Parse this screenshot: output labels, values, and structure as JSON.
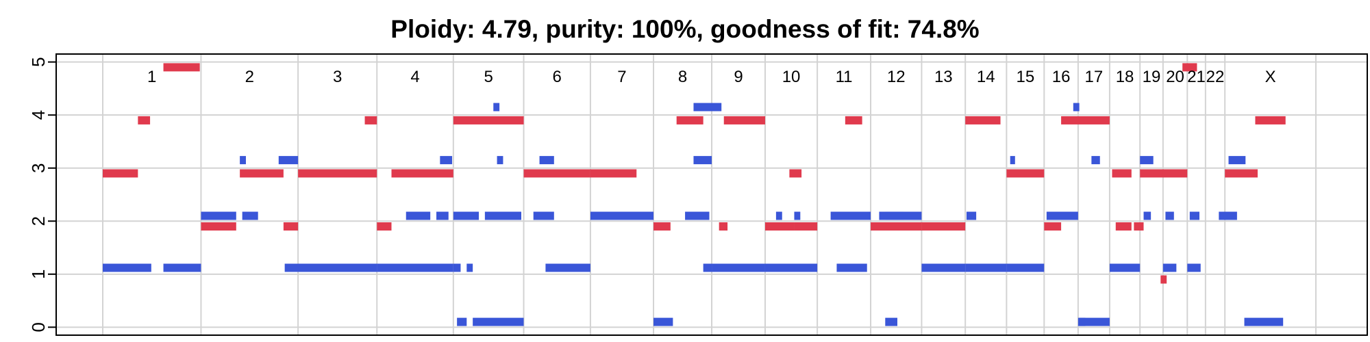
{
  "chart_data": {
    "type": "scatter",
    "title": "Ploidy: 4.79, purity: 100%, goodness of fit: 74.8%",
    "xlabel": "",
    "ylabel": "",
    "ylim": [
      -0.15,
      5.15
    ],
    "yticks": [
      "0",
      "1",
      "2",
      "3",
      "4",
      "5"
    ],
    "grid": true,
    "legend": "none",
    "colors": {
      "major": "#3a56d8",
      "minor": "#e03a4d",
      "grid": "#d3d3d3"
    },
    "chromosomes": [
      {
        "label": "1",
        "start": 0.0,
        "end": 0.081
      },
      {
        "label": "2",
        "start": 0.081,
        "end": 0.161
      },
      {
        "label": "3",
        "start": 0.161,
        "end": 0.226
      },
      {
        "label": "4",
        "start": 0.226,
        "end": 0.289
      },
      {
        "label": "5",
        "start": 0.289,
        "end": 0.347
      },
      {
        "label": "6",
        "start": 0.347,
        "end": 0.402
      },
      {
        "label": "7",
        "start": 0.402,
        "end": 0.454
      },
      {
        "label": "8",
        "start": 0.454,
        "end": 0.502
      },
      {
        "label": "9",
        "start": 0.502,
        "end": 0.546
      },
      {
        "label": "10",
        "start": 0.546,
        "end": 0.589
      },
      {
        "label": "11",
        "start": 0.589,
        "end": 0.633
      },
      {
        "label": "12",
        "start": 0.633,
        "end": 0.675
      },
      {
        "label": "13",
        "start": 0.675,
        "end": 0.711
      },
      {
        "label": "14",
        "start": 0.711,
        "end": 0.745
      },
      {
        "label": "15",
        "start": 0.745,
        "end": 0.776
      },
      {
        "label": "16",
        "start": 0.776,
        "end": 0.804
      },
      {
        "label": "17",
        "start": 0.804,
        "end": 0.83
      },
      {
        "label": "18",
        "start": 0.83,
        "end": 0.855
      },
      {
        "label": "19",
        "start": 0.855,
        "end": 0.874
      },
      {
        "label": "20",
        "start": 0.874,
        "end": 0.894
      },
      {
        "label": "21",
        "start": 0.894,
        "end": 0.909
      },
      {
        "label": "22",
        "start": 0.909,
        "end": 0.925
      },
      {
        "label": "X",
        "start": 0.925,
        "end": 1.0
      }
    ],
    "series": [
      {
        "color": "major",
        "segments": [
          [
            0.0,
            0.04,
            1.12
          ],
          [
            0.05,
            0.081,
            1.12
          ],
          [
            0.081,
            0.11,
            2.1
          ],
          [
            0.115,
            0.128,
            2.1
          ],
          [
            0.145,
            0.161,
            3.15
          ],
          [
            0.113,
            0.118,
            3.15
          ],
          [
            0.15,
            0.226,
            1.12
          ],
          [
            0.161,
            0.226,
            1.12
          ],
          [
            0.226,
            0.289,
            1.12
          ],
          [
            0.25,
            0.27,
            2.1
          ],
          [
            0.275,
            0.285,
            2.1
          ],
          [
            0.278,
            0.288,
            3.15
          ],
          [
            0.289,
            0.295,
            1.12
          ],
          [
            0.3,
            0.305,
            1.12
          ],
          [
            0.289,
            0.31,
            2.1
          ],
          [
            0.315,
            0.345,
            2.1
          ],
          [
            0.292,
            0.3,
            0.1
          ],
          [
            0.305,
            0.347,
            0.1
          ],
          [
            0.325,
            0.33,
            3.15
          ],
          [
            0.322,
            0.327,
            4.15
          ],
          [
            0.355,
            0.372,
            2.1
          ],
          [
            0.36,
            0.372,
            3.15
          ],
          [
            0.365,
            0.402,
            1.12
          ],
          [
            0.402,
            0.454,
            2.1
          ],
          [
            0.454,
            0.47,
            0.1
          ],
          [
            0.487,
            0.502,
            3.15
          ],
          [
            0.487,
            0.51,
            4.15
          ],
          [
            0.48,
            0.5,
            2.1
          ],
          [
            0.495,
            0.502,
            1.12
          ],
          [
            0.502,
            0.546,
            1.12
          ],
          [
            0.546,
            0.589,
            1.12
          ],
          [
            0.555,
            0.56,
            2.1
          ],
          [
            0.57,
            0.575,
            2.1
          ],
          [
            0.6,
            0.633,
            2.1
          ],
          [
            0.605,
            0.63,
            1.12
          ],
          [
            0.645,
            0.675,
            2.1
          ],
          [
            0.64,
            0.66,
            2.1
          ],
          [
            0.645,
            0.655,
            0.1
          ],
          [
            0.675,
            0.711,
            1.12
          ],
          [
            0.711,
            0.745,
            1.12
          ],
          [
            0.712,
            0.72,
            2.1
          ],
          [
            0.745,
            0.776,
            1.12
          ],
          [
            0.748,
            0.752,
            3.15
          ],
          [
            0.778,
            0.804,
            2.1
          ],
          [
            0.8,
            0.805,
            4.15
          ],
          [
            0.804,
            0.81,
            0.1
          ],
          [
            0.805,
            0.83,
            0.1
          ],
          [
            0.815,
            0.822,
            3.15
          ],
          [
            0.83,
            0.855,
            1.12
          ],
          [
            0.855,
            0.866,
            3.15
          ],
          [
            0.858,
            0.864,
            2.1
          ],
          [
            0.874,
            0.885,
            1.12
          ],
          [
            0.876,
            0.883,
            2.1
          ],
          [
            0.894,
            0.905,
            1.12
          ],
          [
            0.896,
            0.904,
            2.1
          ],
          [
            0.92,
            0.935,
            2.1
          ],
          [
            0.928,
            0.942,
            3.15
          ],
          [
            0.941,
            0.973,
            0.1
          ]
        ]
      },
      {
        "color": "minor",
        "segments": [
          [
            0.0,
            0.029,
            2.9
          ],
          [
            0.029,
            0.039,
            3.9
          ],
          [
            0.05,
            0.08,
            4.9
          ],
          [
            0.081,
            0.11,
            1.9
          ],
          [
            0.113,
            0.149,
            2.9
          ],
          [
            0.149,
            0.161,
            1.9
          ],
          [
            0.161,
            0.226,
            2.9
          ],
          [
            0.226,
            0.238,
            1.9
          ],
          [
            0.238,
            0.289,
            2.9
          ],
          [
            0.216,
            0.226,
            3.9
          ],
          [
            0.289,
            0.347,
            3.9
          ],
          [
            0.347,
            0.402,
            2.9
          ],
          [
            0.402,
            0.44,
            2.9
          ],
          [
            0.454,
            0.468,
            1.9
          ],
          [
            0.473,
            0.495,
            3.9
          ],
          [
            0.512,
            0.546,
            3.9
          ],
          [
            0.508,
            0.515,
            1.9
          ],
          [
            0.546,
            0.57,
            1.9
          ],
          [
            0.57,
            0.589,
            1.9
          ],
          [
            0.566,
            0.576,
            2.9
          ],
          [
            0.612,
            0.626,
            3.9
          ],
          [
            0.633,
            0.675,
            1.9
          ],
          [
            0.675,
            0.711,
            1.9
          ],
          [
            0.711,
            0.74,
            3.9
          ],
          [
            0.745,
            0.776,
            2.9
          ],
          [
            0.776,
            0.79,
            1.9
          ],
          [
            0.79,
            0.83,
            3.9
          ],
          [
            0.832,
            0.848,
            2.9
          ],
          [
            0.855,
            0.875,
            2.9
          ],
          [
            0.85,
            0.858,
            1.9
          ],
          [
            0.874,
            0.894,
            2.9
          ],
          [
            0.89,
            0.902,
            4.9
          ],
          [
            0.925,
            0.952,
            2.9
          ],
          [
            0.95,
            0.975,
            3.9
          ],
          [
            0.835,
            0.848,
            1.9
          ],
          [
            0.872,
            0.877,
            0.9
          ]
        ]
      }
    ]
  }
}
